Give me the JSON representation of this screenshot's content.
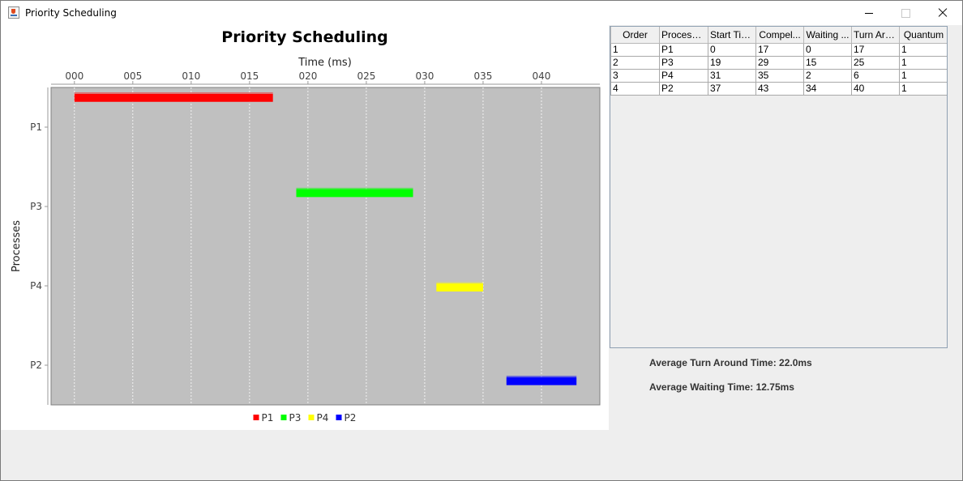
{
  "window": {
    "title": "Priority Scheduling",
    "icon": "java-cup-icon"
  },
  "chart_data": {
    "type": "gantt",
    "title": "Priority Scheduling",
    "xlabel": "Time (ms)",
    "ylabel": "Processes",
    "xlim": [
      -2,
      45
    ],
    "x_ticks": [
      0,
      5,
      10,
      15,
      20,
      25,
      30,
      35,
      40
    ],
    "x_tick_labels": [
      "000",
      "005",
      "010",
      "015",
      "020",
      "025",
      "030",
      "035",
      "040"
    ],
    "categories": [
      "P1",
      "P3",
      "P4",
      "P2"
    ],
    "grid": true,
    "legend_position": "bottom",
    "series": [
      {
        "name": "P1",
        "start": 0,
        "end": 17,
        "color": "#ff0000"
      },
      {
        "name": "P3",
        "start": 19,
        "end": 29,
        "color": "#00ff00"
      },
      {
        "name": "P4",
        "start": 31,
        "end": 35,
        "color": "#ffff00"
      },
      {
        "name": "P2",
        "start": 37,
        "end": 43,
        "color": "#0000ff"
      }
    ]
  },
  "table": {
    "columns": [
      "Order",
      "Process ...",
      "Start Time",
      "Compel...",
      "Waiting ...",
      "Turn Aro...",
      "Quantum"
    ],
    "rows": [
      [
        "1",
        "P1",
        "0",
        "17",
        "0",
        "17",
        "1"
      ],
      [
        "2",
        "P3",
        "19",
        "29",
        "15",
        "25",
        "1"
      ],
      [
        "3",
        "P4",
        "31",
        "35",
        "2",
        "6",
        "1"
      ],
      [
        "4",
        "P2",
        "37",
        "43",
        "34",
        "40",
        "1"
      ]
    ]
  },
  "stats": {
    "avg_turnaround": "Average Turn Around Time: 22.0ms",
    "avg_waiting": "Average Waiting Time: 12.75ms"
  }
}
